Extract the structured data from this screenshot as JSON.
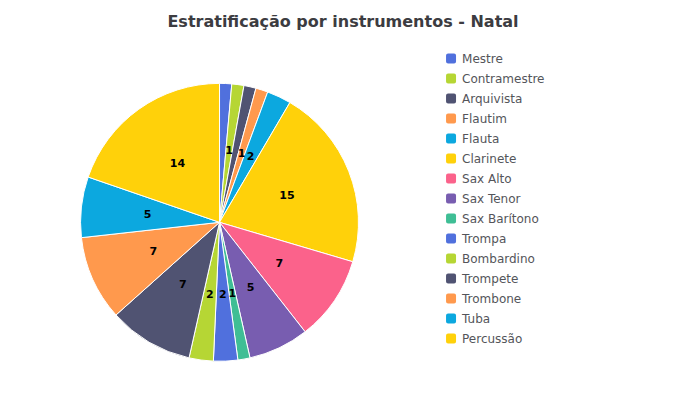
{
  "chart_data": {
    "type": "pie",
    "title": "Estratificação por instrumentos - Natal",
    "categories": [
      "Mestre",
      "Contramestre",
      "Arquivista",
      "Flautim",
      "Flauta",
      "Clarinete",
      "Sax Alto",
      "Sax Tenor",
      "Sax Barítono",
      "Trompa",
      "Bombardino",
      "Trompete",
      "Trombone",
      "Tuba",
      "Percussão"
    ],
    "values": [
      1,
      1,
      1,
      1,
      2,
      15,
      7,
      5,
      1,
      2,
      2,
      7,
      7,
      5,
      14
    ],
    "data_labels": true,
    "legend": "right"
  }
}
